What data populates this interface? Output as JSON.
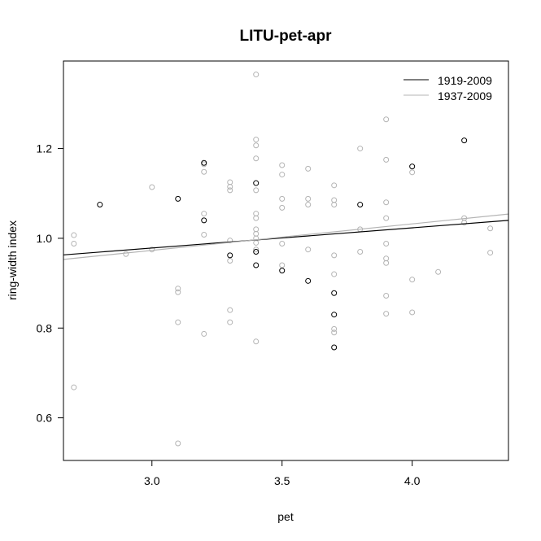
{
  "chart_data": {
    "type": "scatter",
    "title": "LITU-pet-apr",
    "xlabel": "pet",
    "ylabel": "ring-width index",
    "xlim": [
      2.66,
      4.37
    ],
    "ylim": [
      0.505,
      1.395
    ],
    "x_ticks": [
      3.0,
      3.5,
      4.0
    ],
    "x_tick_labels": [
      "3.0",
      "3.5",
      "4.0"
    ],
    "y_ticks": [
      0.6,
      0.8,
      1.0,
      1.2
    ],
    "y_tick_labels": [
      "0.6",
      "0.8",
      "1.0",
      "1.2"
    ],
    "grid": false,
    "legend_position": "top-right",
    "series": [
      {
        "name": "1919-2009",
        "color": "#000000",
        "points": [
          [
            2.8,
            1.075
          ],
          [
            3.1,
            1.088
          ],
          [
            3.2,
            1.168
          ],
          [
            3.2,
            1.04
          ],
          [
            3.3,
            0.962
          ],
          [
            3.4,
            1.123
          ],
          [
            3.4,
            0.97
          ],
          [
            3.4,
            0.94
          ],
          [
            3.5,
            0.928
          ],
          [
            3.6,
            0.905
          ],
          [
            3.7,
            0.878
          ],
          [
            3.7,
            0.83
          ],
          [
            3.7,
            0.757
          ],
          [
            3.8,
            1.075
          ],
          [
            4.0,
            1.16
          ],
          [
            4.2,
            1.218
          ]
        ],
        "fit_line": {
          "x": [
            2.66,
            4.37
          ],
          "y": [
            0.963,
            1.04
          ]
        }
      },
      {
        "name": "1937-2009",
        "color": "#b4b4b4",
        "points": [
          [
            2.7,
            1.007
          ],
          [
            2.7,
            0.988
          ],
          [
            2.7,
            0.668
          ],
          [
            2.9,
            0.965
          ],
          [
            3.0,
            1.114
          ],
          [
            3.0,
            0.975
          ],
          [
            3.1,
            0.888
          ],
          [
            3.1,
            0.88
          ],
          [
            3.1,
            0.813
          ],
          [
            3.1,
            0.543
          ],
          [
            3.2,
            1.165
          ],
          [
            3.2,
            1.148
          ],
          [
            3.2,
            1.055
          ],
          [
            3.2,
            1.008
          ],
          [
            3.2,
            0.787
          ],
          [
            3.3,
            1.125
          ],
          [
            3.3,
            1.115
          ],
          [
            3.3,
            1.107
          ],
          [
            3.3,
            0.995
          ],
          [
            3.3,
            0.95
          ],
          [
            3.3,
            0.84
          ],
          [
            3.3,
            0.813
          ],
          [
            3.4,
            1.365
          ],
          [
            3.4,
            1.22
          ],
          [
            3.4,
            1.207
          ],
          [
            3.4,
            1.178
          ],
          [
            3.4,
            1.107
          ],
          [
            3.4,
            1.055
          ],
          [
            3.4,
            1.045
          ],
          [
            3.4,
            1.02
          ],
          [
            3.4,
            1.01
          ],
          [
            3.4,
            1.0
          ],
          [
            3.4,
            0.99
          ],
          [
            3.4,
            0.975
          ],
          [
            3.4,
            0.77
          ],
          [
            3.5,
            1.163
          ],
          [
            3.5,
            1.142
          ],
          [
            3.5,
            1.088
          ],
          [
            3.5,
            1.068
          ],
          [
            3.5,
            0.988
          ],
          [
            3.5,
            0.94
          ],
          [
            3.6,
            1.155
          ],
          [
            3.6,
            1.088
          ],
          [
            3.6,
            1.075
          ],
          [
            3.6,
            0.975
          ],
          [
            3.7,
            1.118
          ],
          [
            3.7,
            1.085
          ],
          [
            3.7,
            1.075
          ],
          [
            3.7,
            0.962
          ],
          [
            3.7,
            0.92
          ],
          [
            3.7,
            0.798
          ],
          [
            3.7,
            0.79
          ],
          [
            3.8,
            1.2
          ],
          [
            3.8,
            1.02
          ],
          [
            3.8,
            0.97
          ],
          [
            3.9,
            1.265
          ],
          [
            3.9,
            1.175
          ],
          [
            3.9,
            1.08
          ],
          [
            3.9,
            1.045
          ],
          [
            3.9,
            0.988
          ],
          [
            3.9,
            0.955
          ],
          [
            3.9,
            0.945
          ],
          [
            3.9,
            0.872
          ],
          [
            3.9,
            0.832
          ],
          [
            4.0,
            1.147
          ],
          [
            4.0,
            0.908
          ],
          [
            4.0,
            0.835
          ],
          [
            4.1,
            0.925
          ],
          [
            4.2,
            1.045
          ],
          [
            4.2,
            1.035
          ],
          [
            4.3,
            1.022
          ],
          [
            4.3,
            0.968
          ]
        ],
        "fit_line": {
          "x": [
            2.66,
            4.37
          ],
          "y": [
            0.953,
            1.054
          ]
        }
      }
    ]
  }
}
